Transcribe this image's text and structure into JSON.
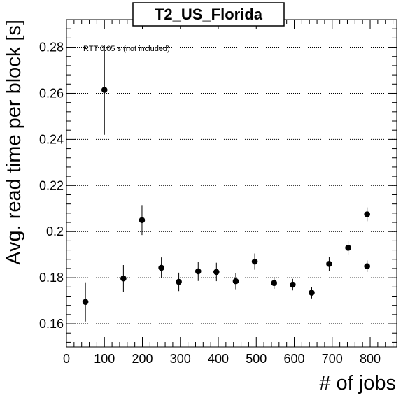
{
  "chart_data": {
    "type": "scatter",
    "title": "T2_US_Florida",
    "xlabel": "# of jobs",
    "ylabel": "Avg. read time per block [s]",
    "annotation": "RTT 0.05 s (not included)",
    "xlim": [
      0,
      870
    ],
    "ylim": [
      0.15,
      0.292
    ],
    "x_ticks": [
      0,
      100,
      200,
      300,
      400,
      500,
      600,
      700,
      800
    ],
    "x_tick_labels": [
      "0",
      "100",
      "200",
      "300",
      "400",
      "500",
      "600",
      "700",
      "800"
    ],
    "y_ticks": [
      0.16,
      0.18,
      0.2,
      0.22,
      0.24,
      0.26,
      0.28
    ],
    "y_tick_labels": [
      "0.16",
      "0.18",
      "0.2",
      "0.22",
      "0.24",
      "0.26",
      "0.28"
    ],
    "grid": "horizontal dotted",
    "marker_color": "#000000",
    "points": [
      {
        "x": 50,
        "y": 0.1695,
        "err": 0.0085
      },
      {
        "x": 100,
        "y": 0.2615,
        "err": 0.0195
      },
      {
        "x": 150,
        "y": 0.1797,
        "err": 0.0058
      },
      {
        "x": 199,
        "y": 0.205,
        "err": 0.0065
      },
      {
        "x": 250,
        "y": 0.1843,
        "err": 0.0045
      },
      {
        "x": 296,
        "y": 0.1782,
        "err": 0.004
      },
      {
        "x": 347,
        "y": 0.1828,
        "err": 0.0042
      },
      {
        "x": 395,
        "y": 0.1825,
        "err": 0.004
      },
      {
        "x": 446,
        "y": 0.1785,
        "err": 0.0035
      },
      {
        "x": 496,
        "y": 0.187,
        "err": 0.0035
      },
      {
        "x": 547,
        "y": 0.1777,
        "err": 0.0025
      },
      {
        "x": 596,
        "y": 0.177,
        "err": 0.0025
      },
      {
        "x": 646,
        "y": 0.1735,
        "err": 0.0025
      },
      {
        "x": 692,
        "y": 0.186,
        "err": 0.003
      },
      {
        "x": 742,
        "y": 0.193,
        "err": 0.003
      },
      {
        "x": 792,
        "y": 0.185,
        "err": 0.0025
      },
      {
        "x": 792,
        "y": 0.2075,
        "err": 0.003
      }
    ]
  }
}
